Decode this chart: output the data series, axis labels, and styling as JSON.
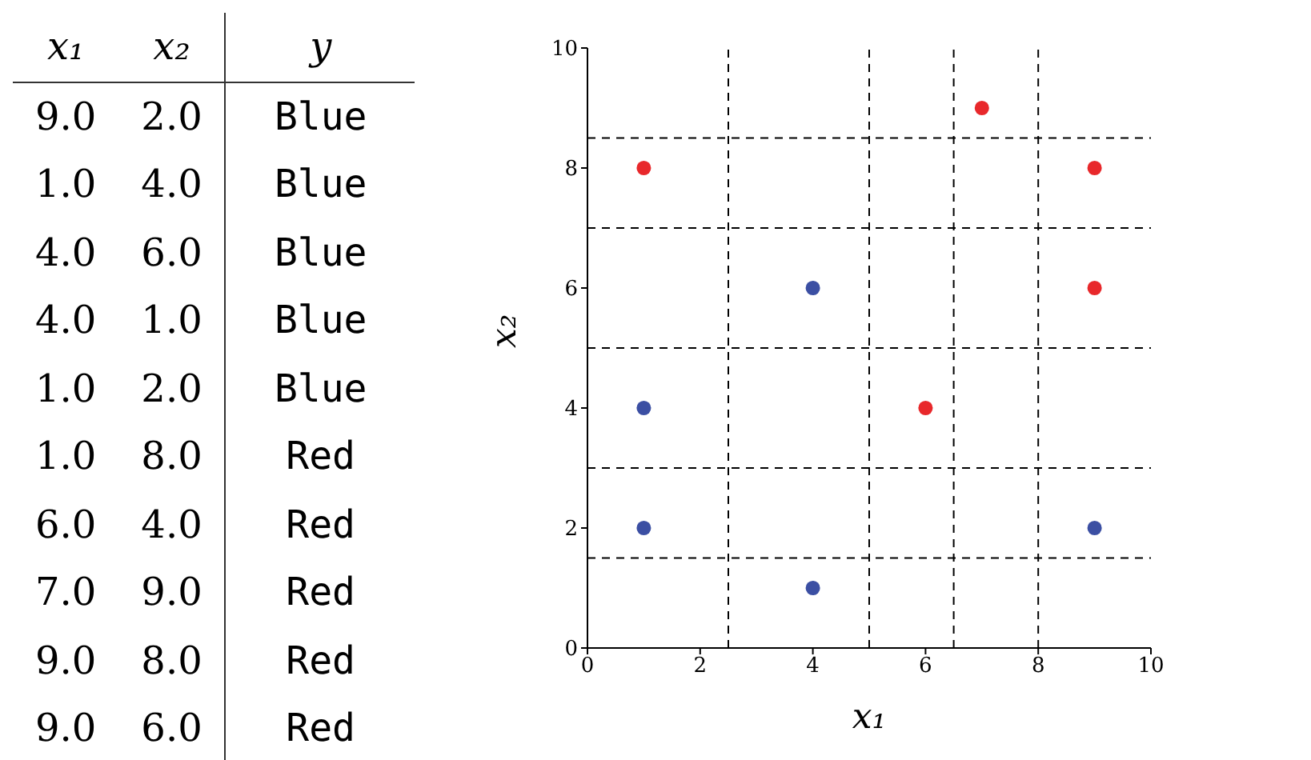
{
  "chart_data": [
    {
      "type": "other",
      "annotations": [
        "x₁",
        "x₂",
        "y",
        "9.0",
        "2.0",
        "Blue",
        "1.0",
        "4.0",
        "Blue",
        "4.0",
        "6.0",
        "Blue",
        "4.0",
        "1.0",
        "Blue",
        "1.0",
        "2.0",
        "Blue",
        "1.0",
        "8.0",
        "Red",
        "6.0",
        "4.0",
        "Red",
        "7.0",
        "9.0",
        "Red",
        "9.0",
        "8.0",
        "Red",
        "9.0",
        "6.0",
        "Red"
      ]
    },
    {
      "type": "scatter",
      "xlabel": "x₁",
      "ylabel": "x₂",
      "marker": "circle",
      "xlim": [
        0,
        10
      ],
      "ylim": [
        0,
        10
      ],
      "xticks": [
        0,
        2,
        4,
        6,
        8,
        10
      ],
      "yticks": [
        0,
        2,
        4,
        6,
        8,
        10
      ],
      "series": [
        {
          "color": "#3b4fa3",
          "x": [
            9,
            1,
            4,
            4,
            1
          ],
          "values": [
            2,
            4,
            6,
            1,
            2
          ]
        },
        {
          "color": "#e8282b",
          "x": [
            1,
            6,
            7,
            9,
            9
          ],
          "values": [
            8,
            4,
            9,
            8,
            6
          ]
        }
      ],
      "ref_lines": [
        {
          "axis": "x",
          "value": 2.5,
          "line_style": "dashed",
          "color": "#000000"
        },
        {
          "axis": "x",
          "value": 5,
          "line_style": "dashed",
          "color": "#000000"
        },
        {
          "axis": "x",
          "value": 6.5,
          "line_style": "dashed",
          "color": "#000000"
        },
        {
          "axis": "x",
          "value": 8,
          "line_style": "dashed",
          "color": "#000000"
        },
        {
          "axis": "y",
          "value": 1.5,
          "line_style": "dashed",
          "color": "#000000"
        },
        {
          "axis": "y",
          "value": 3,
          "line_style": "dashed",
          "color": "#000000"
        },
        {
          "axis": "y",
          "value": 5,
          "line_style": "dashed",
          "color": "#000000"
        },
        {
          "axis": "y",
          "value": 7,
          "line_style": "dashed",
          "color": "#000000"
        },
        {
          "axis": "y",
          "value": 8.5,
          "line_style": "dashed",
          "color": "#000000"
        }
      ]
    }
  ]
}
